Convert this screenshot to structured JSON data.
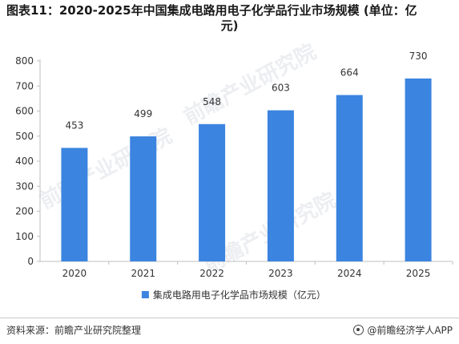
{
  "title_line1": "图表11：2020-2025年中国集成电路用电子化学品行业市场规模 (单位：亿",
  "title_line2": "元)",
  "source_text": "资料来源：前瞻产业研究院整理",
  "brand_text": "@前瞻经济学人APP",
  "watermark_text": "前瞻产业研究院",
  "bar_color": "#3b84e0",
  "chart_data": {
    "type": "bar",
    "categories": [
      "2020",
      "2021",
      "2022",
      "2023",
      "2024",
      "2025"
    ],
    "series": [
      {
        "name": "集成电路用电子化学品市场规模（亿元）",
        "values": [
          453,
          499,
          548,
          603,
          664,
          730
        ]
      }
    ],
    "ylim": [
      0,
      800
    ],
    "yticks": [
      0,
      100,
      200,
      300,
      400,
      500,
      600,
      700,
      800
    ],
    "grid": false,
    "legend": "bottom"
  }
}
